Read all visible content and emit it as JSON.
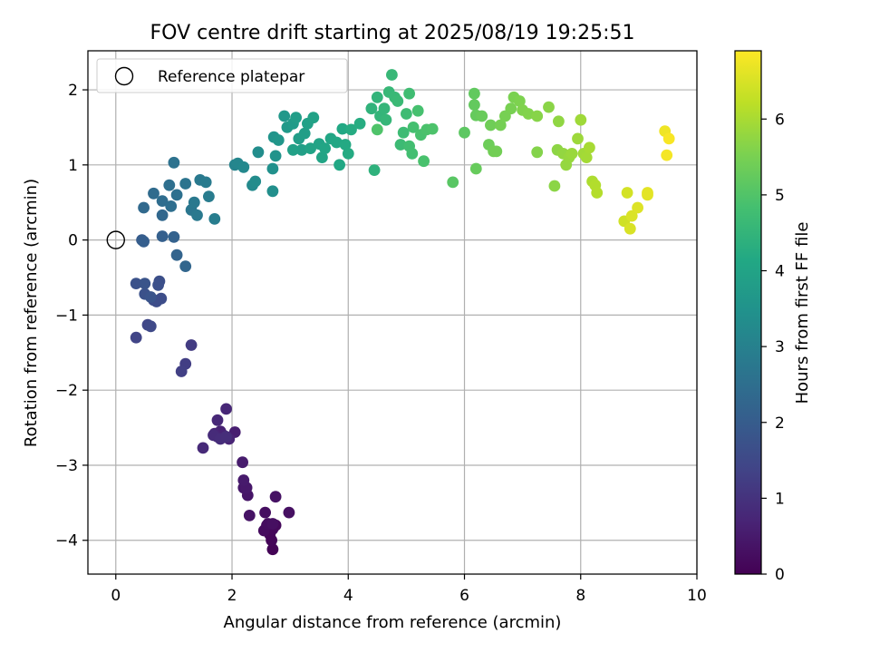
{
  "chart_data": {
    "type": "scatter",
    "title": "FOV centre drift starting at 2025/08/19 19:25:51",
    "xlabel": "Angular distance from reference (arcmin)",
    "ylabel": "Rotation from reference (arcmin)",
    "xlim": [
      -0.48,
      10.0
    ],
    "ylim": [
      -4.45,
      2.52
    ],
    "xticks": [
      "0",
      "2",
      "4",
      "6",
      "8",
      "10"
    ],
    "xtick_values": [
      0,
      2,
      4,
      6,
      8,
      10
    ],
    "yticks": [
      "−4",
      "−3",
      "−2",
      "−1",
      "0",
      "1",
      "2"
    ],
    "ytick_values": [
      -4,
      -3,
      -2,
      -1,
      0,
      1,
      2
    ],
    "grid": true,
    "legend": {
      "label": "Reference platepar",
      "placement": "top-left",
      "marker": "open-circle"
    },
    "reference_point": [
      0,
      0
    ],
    "colorbar": {
      "label": "Hours from first FF file",
      "colormap": "viridis",
      "range": [
        0,
        6.9
      ],
      "ticks": [
        "0",
        "1",
        "2",
        "3",
        "4",
        "5",
        "6"
      ],
      "tick_values": [
        0,
        1,
        2,
        3,
        4,
        5,
        6
      ]
    },
    "points": [
      [
        2.7,
        -4.12,
        0.05
      ],
      [
        2.68,
        -4.0,
        0.08
      ],
      [
        2.65,
        -3.92,
        0.1
      ],
      [
        2.7,
        -3.85,
        0.12
      ],
      [
        2.75,
        -3.8,
        0.15
      ],
      [
        2.6,
        -3.8,
        0.18
      ],
      [
        2.55,
        -3.87,
        0.2
      ],
      [
        2.62,
        -3.78,
        0.22
      ],
      [
        2.57,
        -3.63,
        0.25
      ],
      [
        2.7,
        -3.78,
        0.27
      ],
      [
        2.98,
        -3.63,
        0.3
      ],
      [
        2.75,
        -3.42,
        0.33
      ],
      [
        2.3,
        -3.67,
        0.36
      ],
      [
        2.27,
        -3.4,
        0.4
      ],
      [
        2.2,
        -3.3,
        0.43
      ],
      [
        2.25,
        -3.3,
        0.46
      ],
      [
        2.2,
        -3.2,
        0.5
      ],
      [
        2.18,
        -2.96,
        0.53
      ],
      [
        2.05,
        -2.56,
        0.58
      ],
      [
        1.75,
        -2.62,
        0.62
      ],
      [
        1.8,
        -2.55,
        0.65
      ],
      [
        1.85,
        -2.6,
        0.68
      ],
      [
        1.95,
        -2.65,
        0.7
      ],
      [
        1.7,
        -2.58,
        0.72
      ],
      [
        1.9,
        -2.25,
        0.75
      ],
      [
        1.75,
        -2.4,
        0.78
      ],
      [
        1.5,
        -2.77,
        0.82
      ],
      [
        1.68,
        -2.6,
        0.85
      ],
      [
        1.8,
        -2.65,
        0.88
      ],
      [
        1.9,
        -2.62,
        0.9
      ],
      [
        1.3,
        -1.4,
        1.2
      ],
      [
        1.2,
        -1.65,
        1.25
      ],
      [
        1.13,
        -1.75,
        1.3
      ],
      [
        0.35,
        -1.3,
        1.4
      ],
      [
        0.55,
        -1.13,
        1.45
      ],
      [
        0.6,
        -1.15,
        1.5
      ],
      [
        0.65,
        -0.8,
        1.55
      ],
      [
        0.7,
        -0.82,
        1.6
      ],
      [
        0.78,
        -0.78,
        1.62
      ],
      [
        0.75,
        -0.55,
        1.65
      ],
      [
        0.73,
        -0.6,
        1.68
      ],
      [
        0.5,
        -0.72,
        1.7
      ],
      [
        0.35,
        -0.58,
        1.75
      ],
      [
        0.5,
        -0.58,
        1.78
      ],
      [
        0.6,
        -0.76,
        1.8
      ],
      [
        0.45,
        0.0,
        2.0
      ],
      [
        0.48,
        -0.02,
        2.05
      ],
      [
        0.8,
        0.05,
        2.1
      ],
      [
        1.0,
        0.04,
        2.15
      ],
      [
        1.05,
        -0.2,
        2.2
      ],
      [
        1.2,
        -0.35,
        2.25
      ],
      [
        0.8,
        0.33,
        2.3
      ],
      [
        0.48,
        0.43,
        2.35
      ],
      [
        0.65,
        0.62,
        2.4
      ],
      [
        0.8,
        0.52,
        2.45
      ],
      [
        0.95,
        0.45,
        2.48
      ],
      [
        0.92,
        0.73,
        2.5
      ],
      [
        1.05,
        0.6,
        2.55
      ],
      [
        1.0,
        1.03,
        2.6
      ],
      [
        1.2,
        0.75,
        2.65
      ],
      [
        1.3,
        0.4,
        2.7
      ],
      [
        1.35,
        0.5,
        2.75
      ],
      [
        1.4,
        0.33,
        2.78
      ],
      [
        1.45,
        0.8,
        2.8
      ],
      [
        1.55,
        0.77,
        2.83
      ],
      [
        1.6,
        0.58,
        2.87
      ],
      [
        1.7,
        0.28,
        2.9
      ],
      [
        2.05,
        1.0,
        3.1
      ],
      [
        2.1,
        1.02,
        3.15
      ],
      [
        2.2,
        0.97,
        3.2
      ],
      [
        2.35,
        0.73,
        3.25
      ],
      [
        2.4,
        0.78,
        3.3
      ],
      [
        2.45,
        1.17,
        3.35
      ],
      [
        2.7,
        0.65,
        3.4
      ],
      [
        2.7,
        0.95,
        3.45
      ],
      [
        2.75,
        1.12,
        3.5
      ],
      [
        2.72,
        1.37,
        3.55
      ],
      [
        2.8,
        1.33,
        3.6
      ],
      [
        2.9,
        1.65,
        3.65
      ],
      [
        2.95,
        1.5,
        3.7
      ],
      [
        3.05,
        1.55,
        3.75
      ],
      [
        3.1,
        1.63,
        3.8
      ],
      [
        3.15,
        1.35,
        3.82
      ],
      [
        3.25,
        1.42,
        3.85
      ],
      [
        3.2,
        1.2,
        3.88
      ],
      [
        3.05,
        1.2,
        3.9
      ],
      [
        3.3,
        1.55,
        3.92
      ],
      [
        3.4,
        1.63,
        3.95
      ],
      [
        3.35,
        1.22,
        3.98
      ],
      [
        3.5,
        1.28,
        4.0
      ],
      [
        3.55,
        1.1,
        4.02
      ],
      [
        3.6,
        1.22,
        4.05
      ],
      [
        3.7,
        1.35,
        4.08
      ],
      [
        3.8,
        1.3,
        4.1
      ],
      [
        3.85,
        1.0,
        4.12
      ],
      [
        3.9,
        1.48,
        4.15
      ],
      [
        3.95,
        1.27,
        4.18
      ],
      [
        4.0,
        1.15,
        4.2
      ],
      [
        4.05,
        1.47,
        4.22
      ],
      [
        4.2,
        1.55,
        4.25
      ],
      [
        4.45,
        0.93,
        4.4
      ],
      [
        4.4,
        1.75,
        4.45
      ],
      [
        4.5,
        1.9,
        4.48
      ],
      [
        4.55,
        1.65,
        4.5
      ],
      [
        4.62,
        1.75,
        4.52
      ],
      [
        4.65,
        1.6,
        4.55
      ],
      [
        4.7,
        1.97,
        4.58
      ],
      [
        4.75,
        2.2,
        4.6
      ],
      [
        4.8,
        1.9,
        4.62
      ],
      [
        4.85,
        1.85,
        4.65
      ],
      [
        4.9,
        1.27,
        4.68
      ],
      [
        4.95,
        1.43,
        4.7
      ],
      [
        5.0,
        1.68,
        4.72
      ],
      [
        5.05,
        1.95,
        4.75
      ],
      [
        5.05,
        1.25,
        4.78
      ],
      [
        5.1,
        1.15,
        4.8
      ],
      [
        5.12,
        1.5,
        4.82
      ],
      [
        5.2,
        1.72,
        4.85
      ],
      [
        5.25,
        1.4,
        4.88
      ],
      [
        5.3,
        1.05,
        4.9
      ],
      [
        5.35,
        1.47,
        4.92
      ],
      [
        5.45,
        1.48,
        4.95
      ],
      [
        4.5,
        1.47,
        4.97
      ],
      [
        5.8,
        0.77,
        5.1
      ],
      [
        6.0,
        1.43,
        5.15
      ],
      [
        6.17,
        1.95,
        5.2
      ],
      [
        6.17,
        1.8,
        5.22
      ],
      [
        6.2,
        1.66,
        5.25
      ],
      [
        6.2,
        0.95,
        5.28
      ],
      [
        6.3,
        1.65,
        5.3
      ],
      [
        6.42,
        1.27,
        5.35
      ],
      [
        6.45,
        1.53,
        5.38
      ],
      [
        6.5,
        1.18,
        5.4
      ],
      [
        6.55,
        1.18,
        5.42
      ],
      [
        6.62,
        1.53,
        5.45
      ],
      [
        6.7,
        1.65,
        5.48
      ],
      [
        6.8,
        1.75,
        5.5
      ],
      [
        6.85,
        1.9,
        5.52
      ],
      [
        6.95,
        1.85,
        5.55
      ],
      [
        7.0,
        1.73,
        5.58
      ],
      [
        7.1,
        1.68,
        5.6
      ],
      [
        7.25,
        1.17,
        5.62
      ],
      [
        7.25,
        1.65,
        5.65
      ],
      [
        7.45,
        1.77,
        5.68
      ],
      [
        7.55,
        0.72,
        5.7
      ],
      [
        7.6,
        1.2,
        5.72
      ],
      [
        7.62,
        1.58,
        5.75
      ],
      [
        7.7,
        1.15,
        5.78
      ],
      [
        7.75,
        1.0,
        5.8
      ],
      [
        7.8,
        1.1,
        5.82
      ],
      [
        7.85,
        1.15,
        5.85
      ],
      [
        7.95,
        1.35,
        5.88
      ],
      [
        8.0,
        1.6,
        5.9
      ],
      [
        8.05,
        1.15,
        5.92
      ],
      [
        8.1,
        1.1,
        5.95
      ],
      [
        8.15,
        1.23,
        5.98
      ],
      [
        8.2,
        0.78,
        6.05
      ],
      [
        8.25,
        0.73,
        6.1
      ],
      [
        8.28,
        0.63,
        6.12
      ],
      [
        8.75,
        0.25,
        6.4
      ],
      [
        8.8,
        0.63,
        6.45
      ],
      [
        8.85,
        0.15,
        6.5
      ],
      [
        8.88,
        0.32,
        6.52
      ],
      [
        8.98,
        0.43,
        6.55
      ],
      [
        9.15,
        0.6,
        6.6
      ],
      [
        9.15,
        0.63,
        6.62
      ],
      [
        9.45,
        1.45,
        6.75
      ],
      [
        9.48,
        1.13,
        6.8
      ],
      [
        9.52,
        1.35,
        6.85
      ]
    ]
  }
}
